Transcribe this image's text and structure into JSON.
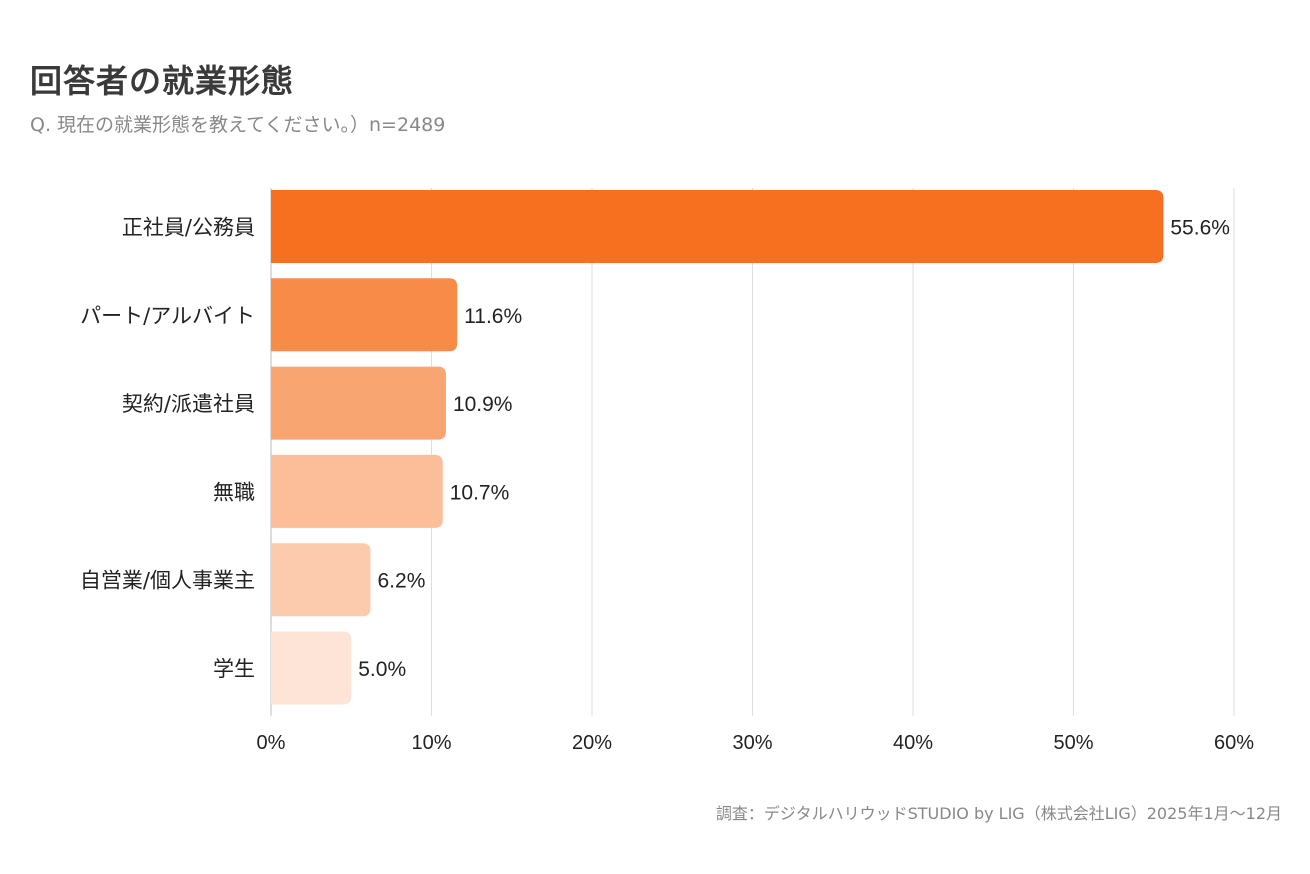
{
  "chart_data": {
    "type": "bar",
    "orientation": "horizontal",
    "title": "回答者の就業形態",
    "subtitle": "Q. 現在の就業形態を教えてください。）n=2489",
    "categories": [
      "正社員/公務員",
      "パート/アルバイト",
      "契約/派遣社員",
      "無職",
      "自営業/個人事業主",
      "学生"
    ],
    "values": [
      55.6,
      11.6,
      10.9,
      10.7,
      6.2,
      5.0
    ],
    "data_labels": [
      "55.6%",
      "11.6%",
      "10.9%",
      "10.7%",
      "6.2%",
      "5.0%"
    ],
    "colors": [
      "#F7701F",
      "#F88B48",
      "#F9A571",
      "#FBBE98",
      "#FCCBAE",
      "#FDE4D6"
    ],
    "xlim": [
      0,
      60
    ],
    "xticks": [
      "0%",
      "10%",
      "20%",
      "30%",
      "40%",
      "50%",
      "60%"
    ],
    "grid": true,
    "source": "調査：デジタルハリウッドSTUDIO by LIG（株式会社LIG）2025年1月〜12月"
  }
}
